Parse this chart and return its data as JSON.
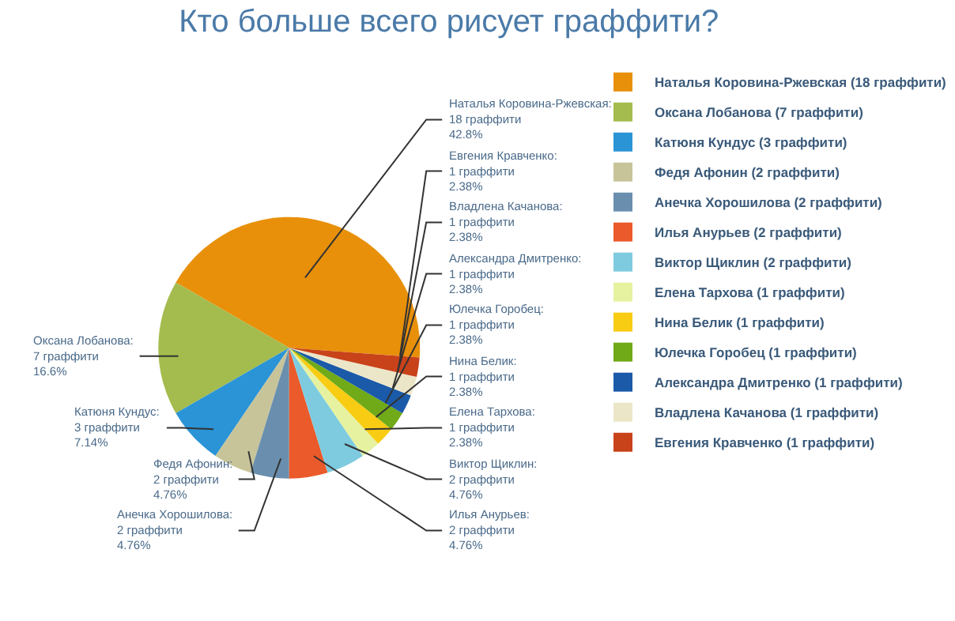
{
  "chart_data": {
    "type": "pie",
    "title": "Кто больше всего рисует граффити?",
    "categories": [
      "Наталья Коровина-Ржевская (18 граффити)",
      "Оксана Лобанова (7 граффити)",
      "Катюня Кундус (3 граффити)",
      "Федя Афонин (2 граффити)",
      "Анечка Хорошилова (2 граффити)",
      "Илья Анурьев (2 граффити)",
      "Виктор Щиклин (2 граффити)",
      "Елена Тархова (1 граффити)",
      "Нина Белик (1 граффити)",
      "Юлечка Горобец (1 граффити)",
      "Александра Дмитренко (1 граффити)",
      "Владлена Качанова (1 граффити)",
      "Евгения Кравченко (1 граффити)"
    ],
    "values": [
      18,
      7,
      3,
      2,
      2,
      2,
      2,
      1,
      1,
      1,
      1,
      1,
      1
    ],
    "colors": [
      "#e8900a",
      "#a4bc4e",
      "#2a94d6",
      "#c8c49a",
      "#6a8fae",
      "#ea5a2a",
      "#7ecbe0",
      "#e6f2a0",
      "#f8cc12",
      "#70aa18",
      "#1a5aa8",
      "#ece6c8",
      "#c8421a"
    ],
    "value_labels": [
      "Наталья Коровина-Ржевская:\n18 граффити\n42.8%",
      "Оксана Лобанова:\n7 граффити\n16.6%",
      "Катюня Кундус:\n3 граффити\n7.14%",
      "Федя Афонин:\n2 граффити\n4.76%",
      "Анечка Хорошилова:\n2 граффити\n4.76%",
      "Илья Анурьев:\n2 граффити\n4.76%",
      "Виктор Щиклин:\n2 граффити\n4.76%",
      "Елена Тархова:\n1 граффити\n2.38%",
      "Нина Белик:\n1 граффити\n2.38%",
      "Юлечка Горобец:\n1 граффити\n2.38%",
      "Александра Дмитренко:\n1 граффити\n2.38%",
      "Владлена Качанова:\n1 граффити\n2.38%",
      "Евгения Кравченко:\n1 граффити\n2.38%"
    ],
    "legend": "right"
  }
}
